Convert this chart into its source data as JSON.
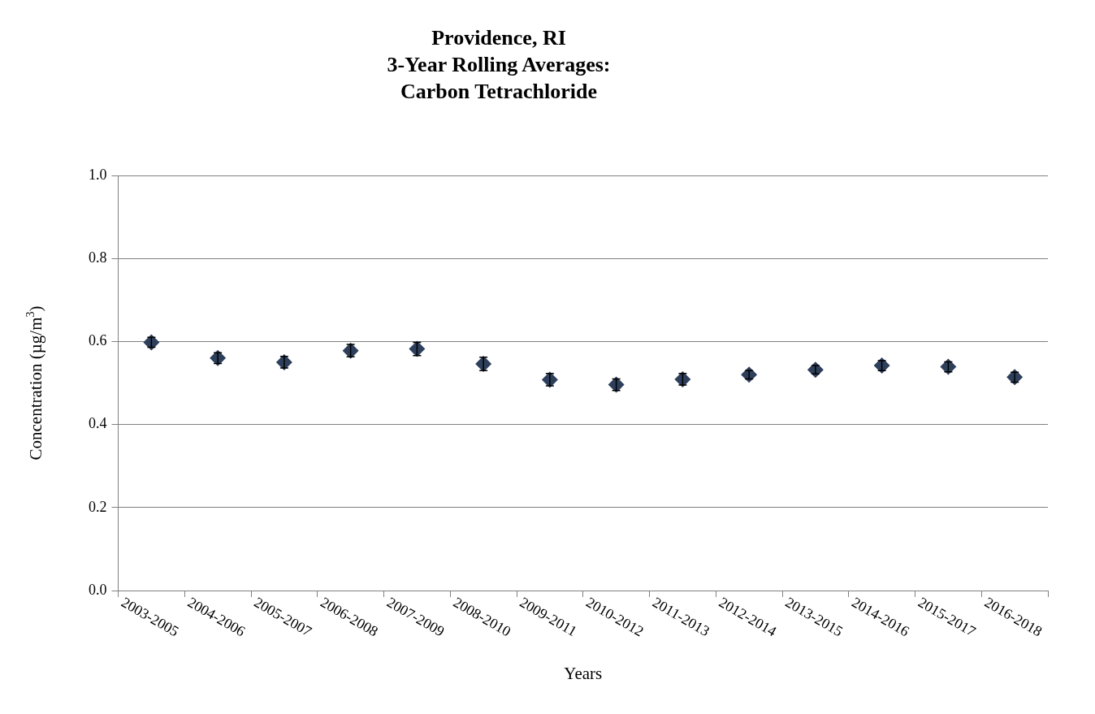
{
  "chart_data": {
    "type": "scatter",
    "title": "Providence, RI\n3-Year Rolling Averages:\nCarbon Tetrachloride",
    "xlabel": "Years",
    "ylabel": "Concentration (µg/m$^{3}$)",
    "categories": [
      "2003-2005",
      "2004-2006",
      "2005-2007",
      "2006-2008",
      "2007-2009",
      "2008-2010",
      "2009-2011",
      "2010-2012",
      "2011-2013",
      "2012-2014",
      "2013-2015",
      "2014-2016",
      "2015-2017",
      "2016-2018"
    ],
    "values": [
      0.598,
      0.56,
      0.55,
      0.578,
      0.582,
      0.546,
      0.508,
      0.496,
      0.509,
      0.52,
      0.532,
      0.542,
      0.539,
      0.514
    ],
    "errors": [
      0.012,
      0.013,
      0.014,
      0.015,
      0.016,
      0.016,
      0.015,
      0.014,
      0.014,
      0.01,
      0.01,
      0.012,
      0.012,
      0.012
    ],
    "color": "#2e3f5c",
    "marker": "diamond",
    "ylim": [
      0,
      1
    ],
    "yticks": [
      {
        "value": 0,
        "label": "0.0"
      },
      0.2,
      0.4,
      0.6,
      0.8,
      {
        "value": 1,
        "label": "1.0"
      }
    ],
    "grid": "y",
    "legend": false
  }
}
